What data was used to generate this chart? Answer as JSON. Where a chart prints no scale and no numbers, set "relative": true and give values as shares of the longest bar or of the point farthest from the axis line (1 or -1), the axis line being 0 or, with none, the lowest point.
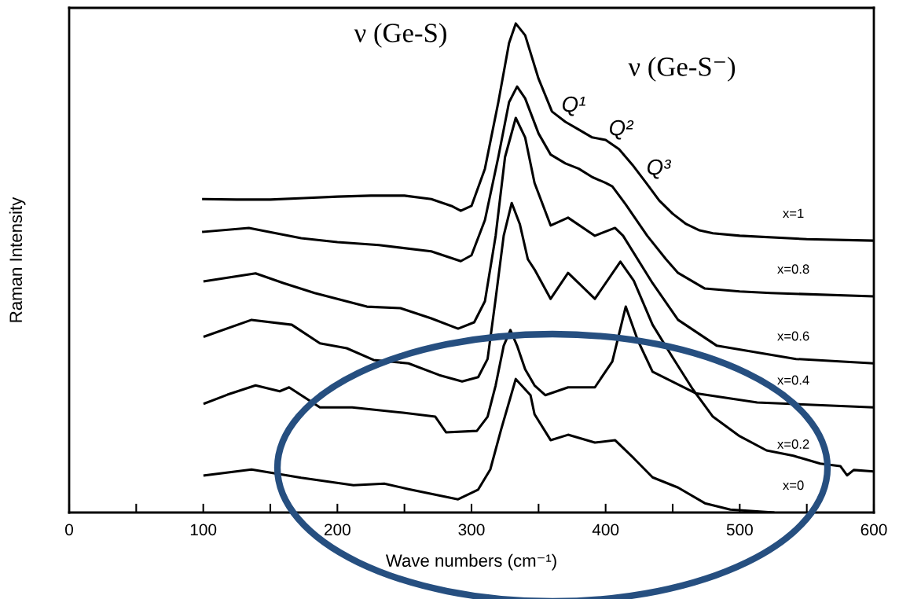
{
  "chart_data": {
    "type": "line",
    "relative": true,
    "xlabel": "Wave numbers (cm⁻¹)",
    "ylabel": "Raman Intensity",
    "xlim": [
      0,
      600
    ],
    "xticks": [
      0,
      {
        "value": 50,
        "label": null
      },
      100,
      {
        "value": 150,
        "label": null
      },
      200,
      {
        "value": 250,
        "label": null
      },
      300,
      {
        "value": 350,
        "label": null
      },
      400,
      {
        "value": 450,
        "label": null
      },
      500,
      {
        "value": 550,
        "label": null
      },
      600
    ],
    "annotations": [
      "ν (Ge-S)",
      "ν (Ge-S⁻)",
      "Q¹",
      "Q²",
      "Q³"
    ],
    "series": [
      {
        "name": "x=1",
        "color": "#000000",
        "x": [
          100,
          125,
          150,
          175,
          200,
          225,
          250,
          270,
          285,
          292,
          300,
          310,
          320,
          328,
          333,
          340,
          350,
          360,
          370,
          380,
          390,
          400,
          410,
          420,
          430,
          440,
          450,
          460,
          470,
          480,
          500,
          550,
          600
        ],
        "values": [
          0.641,
          0.64,
          0.64,
          0.643,
          0.646,
          0.648,
          0.648,
          0.641,
          0.627,
          0.617,
          0.627,
          0.703,
          0.839,
          0.96,
          1.0,
          0.976,
          0.887,
          0.82,
          0.799,
          0.783,
          0.767,
          0.762,
          0.743,
          0.711,
          0.675,
          0.638,
          0.611,
          0.59,
          0.577,
          0.571,
          0.566,
          0.559,
          0.556
        ]
      },
      {
        "name": "x=0.8",
        "color": "#000000",
        "x": [
          100,
          134,
          173,
          200,
          231,
          270,
          292,
          300,
          310,
          320,
          328,
          334,
          340,
          350,
          359,
          370,
          380,
          390,
          400,
          405,
          415,
          431,
          445,
          454,
          474,
          500,
          523,
          600
        ],
        "values": [
          0.574,
          0.582,
          0.561,
          0.553,
          0.547,
          0.534,
          0.514,
          0.526,
          0.598,
          0.727,
          0.839,
          0.871,
          0.847,
          0.775,
          0.732,
          0.714,
          0.703,
          0.686,
          0.674,
          0.667,
          0.63,
          0.566,
          0.518,
          0.49,
          0.458,
          0.452,
          0.449,
          0.442
        ]
      },
      {
        "name": "x=0.6",
        "color": "#000000",
        "x": [
          101,
          139,
          160,
          183,
          222,
          247,
          270,
          290,
          302,
          310,
          318,
          325,
          333,
          340,
          347,
          359,
          372,
          392,
          407,
          413,
          435,
          454,
          483,
          542,
          600
        ],
        "values": [
          0.473,
          0.489,
          0.469,
          0.449,
          0.421,
          0.418,
          0.397,
          0.376,
          0.389,
          0.432,
          0.566,
          0.727,
          0.807,
          0.767,
          0.674,
          0.587,
          0.603,
          0.566,
          0.582,
          0.566,
          0.469,
          0.394,
          0.341,
          0.314,
          0.305
        ]
      },
      {
        "name": "x=0.4",
        "color": "#000000",
        "x": [
          101,
          118,
          139,
          157,
          164,
          187,
          211,
          249,
          273,
          281,
          304,
          312,
          318,
          324,
          329,
          334,
          340,
          347,
          355,
          372,
          392,
          405,
          415,
          424,
          435,
          467,
          513,
          600
        ],
        "values": [
          0.223,
          0.241,
          0.26,
          0.248,
          0.256,
          0.215,
          0.215,
          0.204,
          0.196,
          0.164,
          0.167,
          0.196,
          0.26,
          0.341,
          0.373,
          0.341,
          0.293,
          0.26,
          0.24,
          0.256,
          0.256,
          0.309,
          0.421,
          0.352,
          0.288,
          0.244,
          0.225,
          0.215
        ]
      },
      {
        "name": "x=0.2",
        "color": "#000000",
        "x": [
          101,
          136,
          166,
          187,
          207,
          227,
          253,
          276,
          293,
          305,
          312,
          318,
          324,
          330,
          336,
          342,
          347,
          359,
          372,
          392,
          411,
          421,
          435,
          450,
          465,
          480,
          500,
          520,
          540,
          560,
          575,
          580,
          585,
          600
        ],
        "values": [
          0.36,
          0.394,
          0.384,
          0.346,
          0.336,
          0.312,
          0.305,
          0.281,
          0.268,
          0.277,
          0.314,
          0.437,
          0.566,
          0.633,
          0.59,
          0.518,
          0.497,
          0.437,
          0.49,
          0.437,
          0.513,
          0.474,
          0.384,
          0.317,
          0.252,
          0.196,
          0.156,
          0.127,
          0.116,
          0.1,
          0.095,
          0.076,
          0.087,
          0.084
        ]
      },
      {
        "name": "x=0",
        "color": "#000000",
        "x": [
          101,
          136,
          173,
          212,
          235,
          253,
          290,
          305,
          314,
          322,
          333,
          344,
          347,
          359,
          372,
          392,
          407,
          421,
          435,
          454,
          474,
          493,
          525
        ],
        "values": [
          0.076,
          0.088,
          0.071,
          0.056,
          0.059,
          0.048,
          0.027,
          0.047,
          0.088,
          0.169,
          0.273,
          0.24,
          0.201,
          0.148,
          0.159,
          0.143,
          0.148,
          0.111,
          0.072,
          0.051,
          0.019,
          0.006,
          0
        ]
      }
    ]
  }
}
